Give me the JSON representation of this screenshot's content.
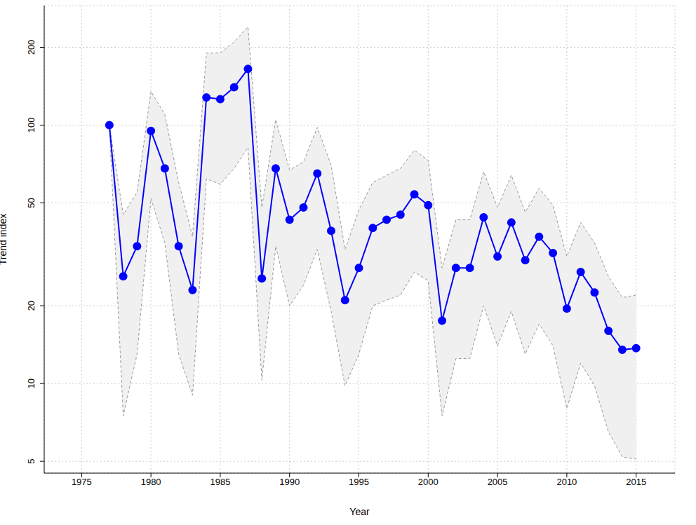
{
  "chart_data": {
    "type": "line",
    "x_label": "Year",
    "y_label": "Trend index",
    "log": "y",
    "grid": true,
    "color": "#0000ff",
    "marker": "circle",
    "line_style": "solid",
    "xlim": [
      1972.3,
      2017.8
    ],
    "xticks": [
      1975,
      1980,
      1985,
      1990,
      1995,
      2000,
      2005,
      2010,
      2015
    ],
    "ylim": [
      4.5,
      290
    ],
    "yticks": [
      5,
      10,
      20,
      50,
      100,
      200
    ],
    "x": [
      1977,
      1978,
      1979,
      1980,
      1981,
      1982,
      1983,
      1984,
      1985,
      1986,
      1987,
      1988,
      1989,
      1990,
      1991,
      1992,
      1993,
      1994,
      1995,
      1996,
      1997,
      1998,
      1999,
      2000,
      2001,
      2002,
      2003,
      2004,
      2005,
      2006,
      2007,
      2008,
      2009,
      2010,
      2011,
      2012,
      2013,
      2014,
      2015
    ],
    "values": [
      100,
      26,
      34,
      95,
      68,
      34,
      23,
      128,
      126,
      140,
      165,
      25.5,
      68,
      43,
      48,
      65,
      39,
      21,
      28,
      40,
      43,
      45,
      54,
      49,
      17.5,
      28,
      28,
      44,
      31,
      42,
      30,
      37,
      32,
      19.5,
      27,
      22.5,
      16,
      13.5,
      13.7
    ],
    "lower": [
      100,
      7.5,
      13,
      52,
      35,
      13,
      9,
      62,
      59,
      68,
      82,
      10.3,
      34,
      20,
      24,
      33,
      19,
      9.8,
      13,
      20,
      21,
      22,
      27,
      25,
      7.5,
      12.5,
      12.5,
      20,
      14,
      19,
      13,
      17,
      14,
      8,
      12,
      9.8,
      6.5,
      5.2,
      5.1
    ],
    "upper": [
      100,
      45,
      55,
      135,
      110,
      60,
      37,
      190,
      190,
      210,
      240,
      48,
      105,
      67,
      72,
      98,
      70,
      33,
      47,
      60,
      64,
      68,
      80,
      73,
      28,
      43,
      43,
      66,
      48,
      64,
      46,
      57,
      49,
      31,
      42,
      35,
      26,
      21.5,
      22
    ]
  }
}
